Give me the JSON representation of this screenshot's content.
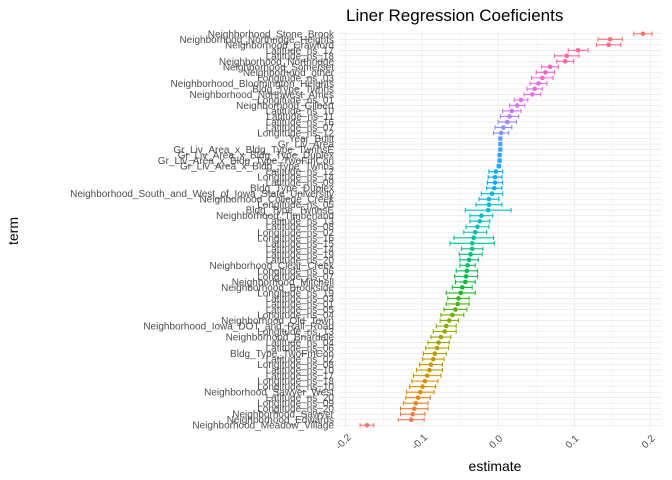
{
  "chart_data": {
    "type": "scatter",
    "title": "Liner Regression Coeficients",
    "xlabel": "estimate",
    "ylabel": "term",
    "xlim": [
      -0.21,
      0.215
    ],
    "x_ticks": [
      -0.2,
      -0.1,
      0.0,
      0.1,
      0.2
    ],
    "x_tick_labels": [
      "-0.2",
      "-0.1",
      "0.0",
      "0.1",
      "0.2"
    ],
    "grid": true,
    "legend": "none",
    "error_bars": true,
    "terms_top_to_bottom": [
      "Neighborhood_Stone_Brook",
      "Neighborhood_Northridge_Heights",
      "Neighborhood_Crawford",
      "Latitude_ns_17",
      "Latitude_ns_18",
      "Neighborhood_Northridge",
      "Neighborhood_Somerset",
      "Neighborhood_other",
      "Longitude_ns_03",
      "Neighborhood_Bloomington_Heights",
      "Bldg_Type_Twnhs",
      "Neighborhood_Northwest_Ames",
      "Longitude_ns_01",
      "Neighborhood_Gilbert",
      "Latitude_ns_10",
      "Latitude_ns_11",
      "Latitude_ns_16",
      "Latitude_ns_07",
      "Longitude_ns_12",
      "Year_Built",
      "Gr_Liv_Area",
      "Gr_Liv_Area_x_Bldg_Type_TwnhsE",
      "Gr_Liv_Area_x_Bldg_Type_Duplex",
      "Gr_Liv_Area_x_Bldg_Type_TwoFmCon",
      "Gr_Liv_Area_x_Bldg_Type_Twnhs",
      "Latitude_ns_12",
      "Longitude_ns_14",
      "Latitude_ns_09",
      "Bldg_Type_Duplex",
      "Neighborhood_South_and_West_of_Iowa_State_University",
      "Neighborhood_College_Creek",
      "Longitude_ns_05",
      "Bldg_Type_TwnhsE",
      "Neighborhood_Timberland",
      "Latitude_ns_13",
      "Latitude_ns_08",
      "Longitude_ns_02",
      "Longitude_ns_16",
      "Latitude_ns_15",
      "Latitude_ns_14",
      "Latitude_ns_19",
      "Latitude_ns_20",
      "Neighborhood_Clear_Creek",
      "Longitude_ns_06",
      "Longitude_ns_07",
      "Neighborhood_Mitchell",
      "Neighborhood_Brookside",
      "Longitude_ns_19",
      "Latitude_ns_03",
      "Latitude_ns_01",
      "Latitude_ns_05",
      "Longitude_ns_04",
      "Neighborhood_Old_Town",
      "Neighborhood_Iowa_DOT_and_Rail_Road",
      "Longitude_ns_13",
      "Neighborhood_Briardale",
      "Latitude_ns_04",
      "Latitude_ns_06",
      "Bldg_Type_TwoFmCon",
      "Latitude_ns_02",
      "Longitude_ns_08",
      "Latitude_ns_10",
      "Latitude_ns_17",
      "Longitude_ns_18",
      "Longitude_ns_10",
      "Neighborhood_Sawyer_West",
      "Latitude_ns_20",
      "Longitude_ns_09",
      "Longitude_ns_20",
      "Neighborhood_Sawyer",
      "Neighborhood_Edwards",
      "Neighborhood_Meadow_Village"
    ],
    "estimates": [
      0.19,
      0.147,
      0.145,
      0.105,
      0.09,
      0.088,
      0.068,
      0.062,
      0.058,
      0.053,
      0.048,
      0.045,
      0.03,
      0.025,
      0.018,
      0.015,
      0.012,
      0.007,
      0.004,
      0.003,
      0.003,
      0.003,
      0.002,
      0.002,
      0.001,
      -0.003,
      -0.004,
      -0.004,
      -0.005,
      -0.008,
      -0.012,
      -0.012,
      -0.013,
      -0.022,
      -0.024,
      -0.027,
      -0.03,
      -0.032,
      -0.034,
      -0.034,
      -0.036,
      -0.038,
      -0.04,
      -0.041,
      -0.042,
      -0.043,
      -0.047,
      -0.049,
      -0.052,
      -0.053,
      -0.056,
      -0.06,
      -0.064,
      -0.068,
      -0.07,
      -0.075,
      -0.078,
      -0.08,
      -0.083,
      -0.085,
      -0.088,
      -0.09,
      -0.093,
      -0.096,
      -0.099,
      -0.102,
      -0.105,
      -0.108,
      -0.11,
      -0.112,
      -0.114,
      -0.172
    ],
    "ci_low": [
      0.178,
      0.131,
      0.129,
      0.092,
      0.074,
      0.077,
      0.057,
      0.05,
      0.044,
      0.042,
      0.038,
      0.034,
      0.021,
      0.015,
      0.006,
      0.003,
      0.0,
      -0.004,
      -0.006,
      0.001,
      0.001,
      0.001,
      0.0,
      0.0,
      -0.001,
      -0.012,
      -0.013,
      -0.014,
      -0.015,
      -0.022,
      -0.025,
      -0.029,
      -0.043,
      -0.037,
      -0.037,
      -0.042,
      -0.045,
      -0.058,
      -0.063,
      -0.048,
      -0.051,
      -0.05,
      -0.05,
      -0.055,
      -0.057,
      -0.056,
      -0.06,
      -0.068,
      -0.066,
      -0.068,
      -0.071,
      -0.075,
      -0.076,
      -0.081,
      -0.085,
      -0.088,
      -0.092,
      -0.095,
      -0.098,
      -0.099,
      -0.103,
      -0.107,
      -0.111,
      -0.113,
      -0.116,
      -0.12,
      -0.121,
      -0.124,
      -0.128,
      -0.128,
      -0.131,
      -0.181
    ],
    "ci_high": [
      0.202,
      0.163,
      0.161,
      0.118,
      0.106,
      0.099,
      0.079,
      0.074,
      0.072,
      0.064,
      0.058,
      0.056,
      0.039,
      0.035,
      0.03,
      0.027,
      0.024,
      0.018,
      0.014,
      0.005,
      0.005,
      0.005,
      0.004,
      0.004,
      0.003,
      0.006,
      0.005,
      0.006,
      0.005,
      0.006,
      0.001,
      0.005,
      0.017,
      -0.007,
      -0.011,
      -0.012,
      -0.015,
      -0.006,
      -0.005,
      -0.02,
      -0.021,
      -0.026,
      -0.03,
      -0.027,
      -0.027,
      -0.03,
      -0.034,
      -0.03,
      -0.038,
      -0.038,
      -0.041,
      -0.045,
      -0.052,
      -0.055,
      -0.055,
      -0.062,
      -0.064,
      -0.065,
      -0.068,
      -0.071,
      -0.073,
      -0.073,
      -0.075,
      -0.079,
      -0.082,
      -0.084,
      -0.089,
      -0.092,
      -0.092,
      -0.096,
      -0.097,
      -0.163
    ],
    "colors": {
      "gradient_from_top_to_bottom": [
        "#F8766D",
        "#FF61C3",
        "#DB72FB",
        "#619CFF",
        "#00A9FF",
        "#00BFC4",
        "#00C08B",
        "#00BA38",
        "#7CAE00",
        "#B79F00",
        "#E18A00",
        "#F8766D"
      ],
      "grid_major": "#e6e6e6",
      "grid_minor": "#f2f2f2",
      "text": "#4d4d4d"
    }
  }
}
